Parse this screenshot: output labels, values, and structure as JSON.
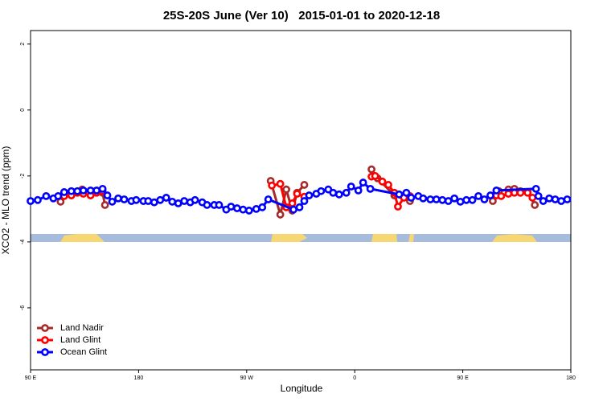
{
  "chart_data": {
    "type": "line",
    "title": "25S-20S June (Ver 10)   2015-01-01 to 2020-12-18",
    "x_label": "Longitude",
    "y_label": "XCO2 - MLO trend (ppm)",
    "xlim": [
      90,
      540
    ],
    "xticks": [
      {
        "value": 90,
        "label": "90 E"
      },
      180,
      {
        "value": 270,
        "label": "90 W"
      },
      {
        "value": 360,
        "label": "0"
      },
      {
        "value": 450,
        "label": "90 E"
      },
      {
        "value": 540,
        "label": "180"
      }
    ],
    "ylim": [
      -7.88,
      2.41
    ],
    "yticks": [
      -6,
      -4,
      -2,
      0,
      2
    ],
    "legend": "bottom-left",
    "series": [
      {
        "name": "Land Nadir",
        "color": "#a52a2a",
        "x": [
          115,
          118,
          133,
          150,
          152,
          200,
          290,
          298,
          303,
          308,
          312,
          318,
          350,
          374,
          379,
          393,
          406,
          440,
          475,
          480,
          488,
          493,
          498,
          504,
          510
        ],
        "values": [
          -2.78,
          -2.51,
          -2.41,
          -2.51,
          -2.88,
          null,
          -2.15,
          -3.17,
          -2.41,
          -3.05,
          -2.51,
          -2.27,
          null,
          -1.8,
          -2.07,
          -2.59,
          -2.76,
          null,
          -2.76,
          -2.46,
          -2.41,
          -2.39,
          -2.46,
          -2.49,
          -2.88
        ]
      },
      {
        "name": "Land Glint",
        "color": "#ff0000",
        "x": [
          118,
          124,
          129,
          134,
          140,
          145,
          150,
          200,
          291,
          298,
          303,
          308,
          312,
          318,
          350,
          374,
          377,
          383,
          388,
          393,
          396,
          401,
          406,
          440,
          478,
          482,
          488,
          493,
          498,
          504,
          508
        ],
        "values": [
          -2.61,
          -2.59,
          -2.51,
          -2.54,
          -2.59,
          -2.51,
          -2.46,
          null,
          -2.29,
          -2.24,
          -2.95,
          -2.83,
          -2.54,
          -2.63,
          null,
          -2.02,
          -2.0,
          -2.17,
          -2.27,
          -2.51,
          -2.93,
          -2.66,
          -2.61,
          null,
          -2.59,
          -2.61,
          -2.54,
          -2.51,
          -2.51,
          -2.51,
          -2.66
        ]
      },
      {
        "name": "Ocean Glint",
        "color": "#0000ff",
        "x": [
          90,
          96,
          103,
          109,
          113,
          118,
          124,
          129,
          134,
          140,
          145,
          150,
          154,
          158,
          163,
          168,
          174,
          178,
          184,
          188,
          193,
          198,
          203,
          208,
          213,
          218,
          223,
          227,
          233,
          237,
          243,
          247,
          253,
          257,
          262,
          267,
          272,
          278,
          283,
          288,
          309,
          314,
          318,
          322,
          328,
          332,
          338,
          342,
          347,
          353,
          357,
          363,
          367,
          373,
          397,
          403,
          407,
          413,
          417,
          423,
          428,
          433,
          438,
          443,
          448,
          453,
          458,
          463,
          468,
          473,
          478,
          511,
          513,
          517,
          522,
          527,
          532,
          537
        ],
        "values": [
          -2.76,
          -2.73,
          -2.61,
          -2.68,
          -2.61,
          -2.49,
          -2.46,
          -2.46,
          -2.44,
          -2.44,
          -2.44,
          -2.39,
          -2.59,
          -2.78,
          -2.68,
          -2.71,
          -2.76,
          -2.73,
          -2.76,
          -2.76,
          -2.8,
          -2.73,
          -2.66,
          -2.78,
          -2.83,
          -2.76,
          -2.8,
          -2.73,
          -2.8,
          -2.88,
          -2.88,
          -2.88,
          -3.02,
          -2.93,
          -2.98,
          -3.02,
          -3.05,
          -3.0,
          -2.95,
          -2.71,
          -3.02,
          -2.95,
          -2.76,
          -2.59,
          -2.54,
          -2.46,
          -2.41,
          -2.51,
          -2.56,
          -2.51,
          -2.32,
          -2.44,
          -2.2,
          -2.39,
          -2.56,
          -2.51,
          -2.66,
          -2.61,
          -2.68,
          -2.71,
          -2.71,
          -2.73,
          -2.76,
          -2.68,
          -2.78,
          -2.73,
          -2.73,
          -2.61,
          -2.71,
          -2.59,
          -2.44,
          -2.39,
          -2.61,
          -2.76,
          -2.68,
          -2.71,
          -2.76,
          -2.71
        ]
      }
    ]
  }
}
